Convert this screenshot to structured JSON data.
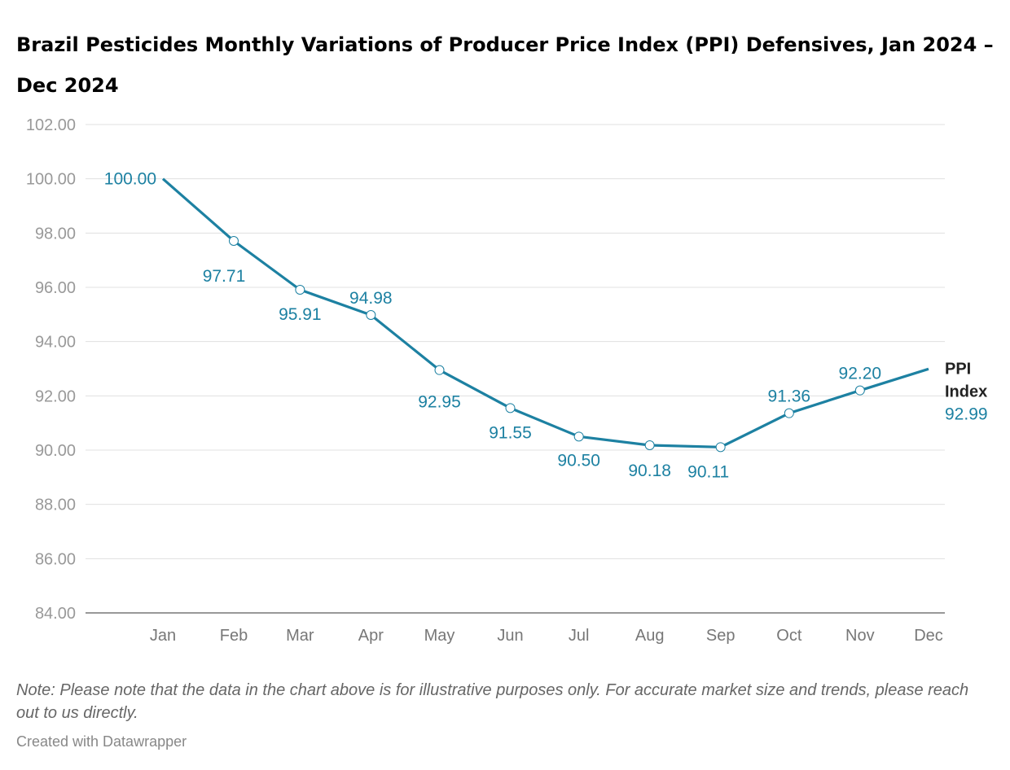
{
  "title": "Brazil Pesticides Monthly Variations of Producer Price Index (PPI) Defensives, Jan 2024 – Dec 2024",
  "note": "Note: Please note that the data in the chart above is for illustrative purposes only. For accurate market size and trends, please reach out to us directly.",
  "credit": "Created with Datawrapper",
  "chart_data": {
    "type": "line",
    "title": "Brazil Pesticides Monthly Variations of Producer Price Index (PPI) Defensives, Jan 2024 – Dec 2024",
    "categories": [
      "Jan",
      "Feb",
      "Mar",
      "Apr",
      "May",
      "Jun",
      "Jul",
      "Aug",
      "Sep",
      "Oct",
      "Nov",
      "Dec"
    ],
    "series": [
      {
        "name": "PPI Index",
        "values": [
          100.0,
          97.71,
          95.91,
          94.98,
          92.95,
          91.55,
          90.5,
          90.18,
          90.11,
          91.36,
          92.2,
          92.99
        ],
        "color": "#1d81a2"
      }
    ],
    "value_labels": [
      "100.00",
      "97.71",
      "95.91",
      "94.98",
      "92.95",
      "91.55",
      "90.50",
      "90.18",
      "90.11",
      "91.36",
      "92.20",
      "92.99"
    ],
    "yticks": [
      "84.00",
      "86.00",
      "88.00",
      "90.00",
      "92.00",
      "94.00",
      "96.00",
      "98.00",
      "100.00",
      "102.00"
    ],
    "ylim": [
      84,
      102
    ],
    "grid": true,
    "legend": "line-end label"
  }
}
